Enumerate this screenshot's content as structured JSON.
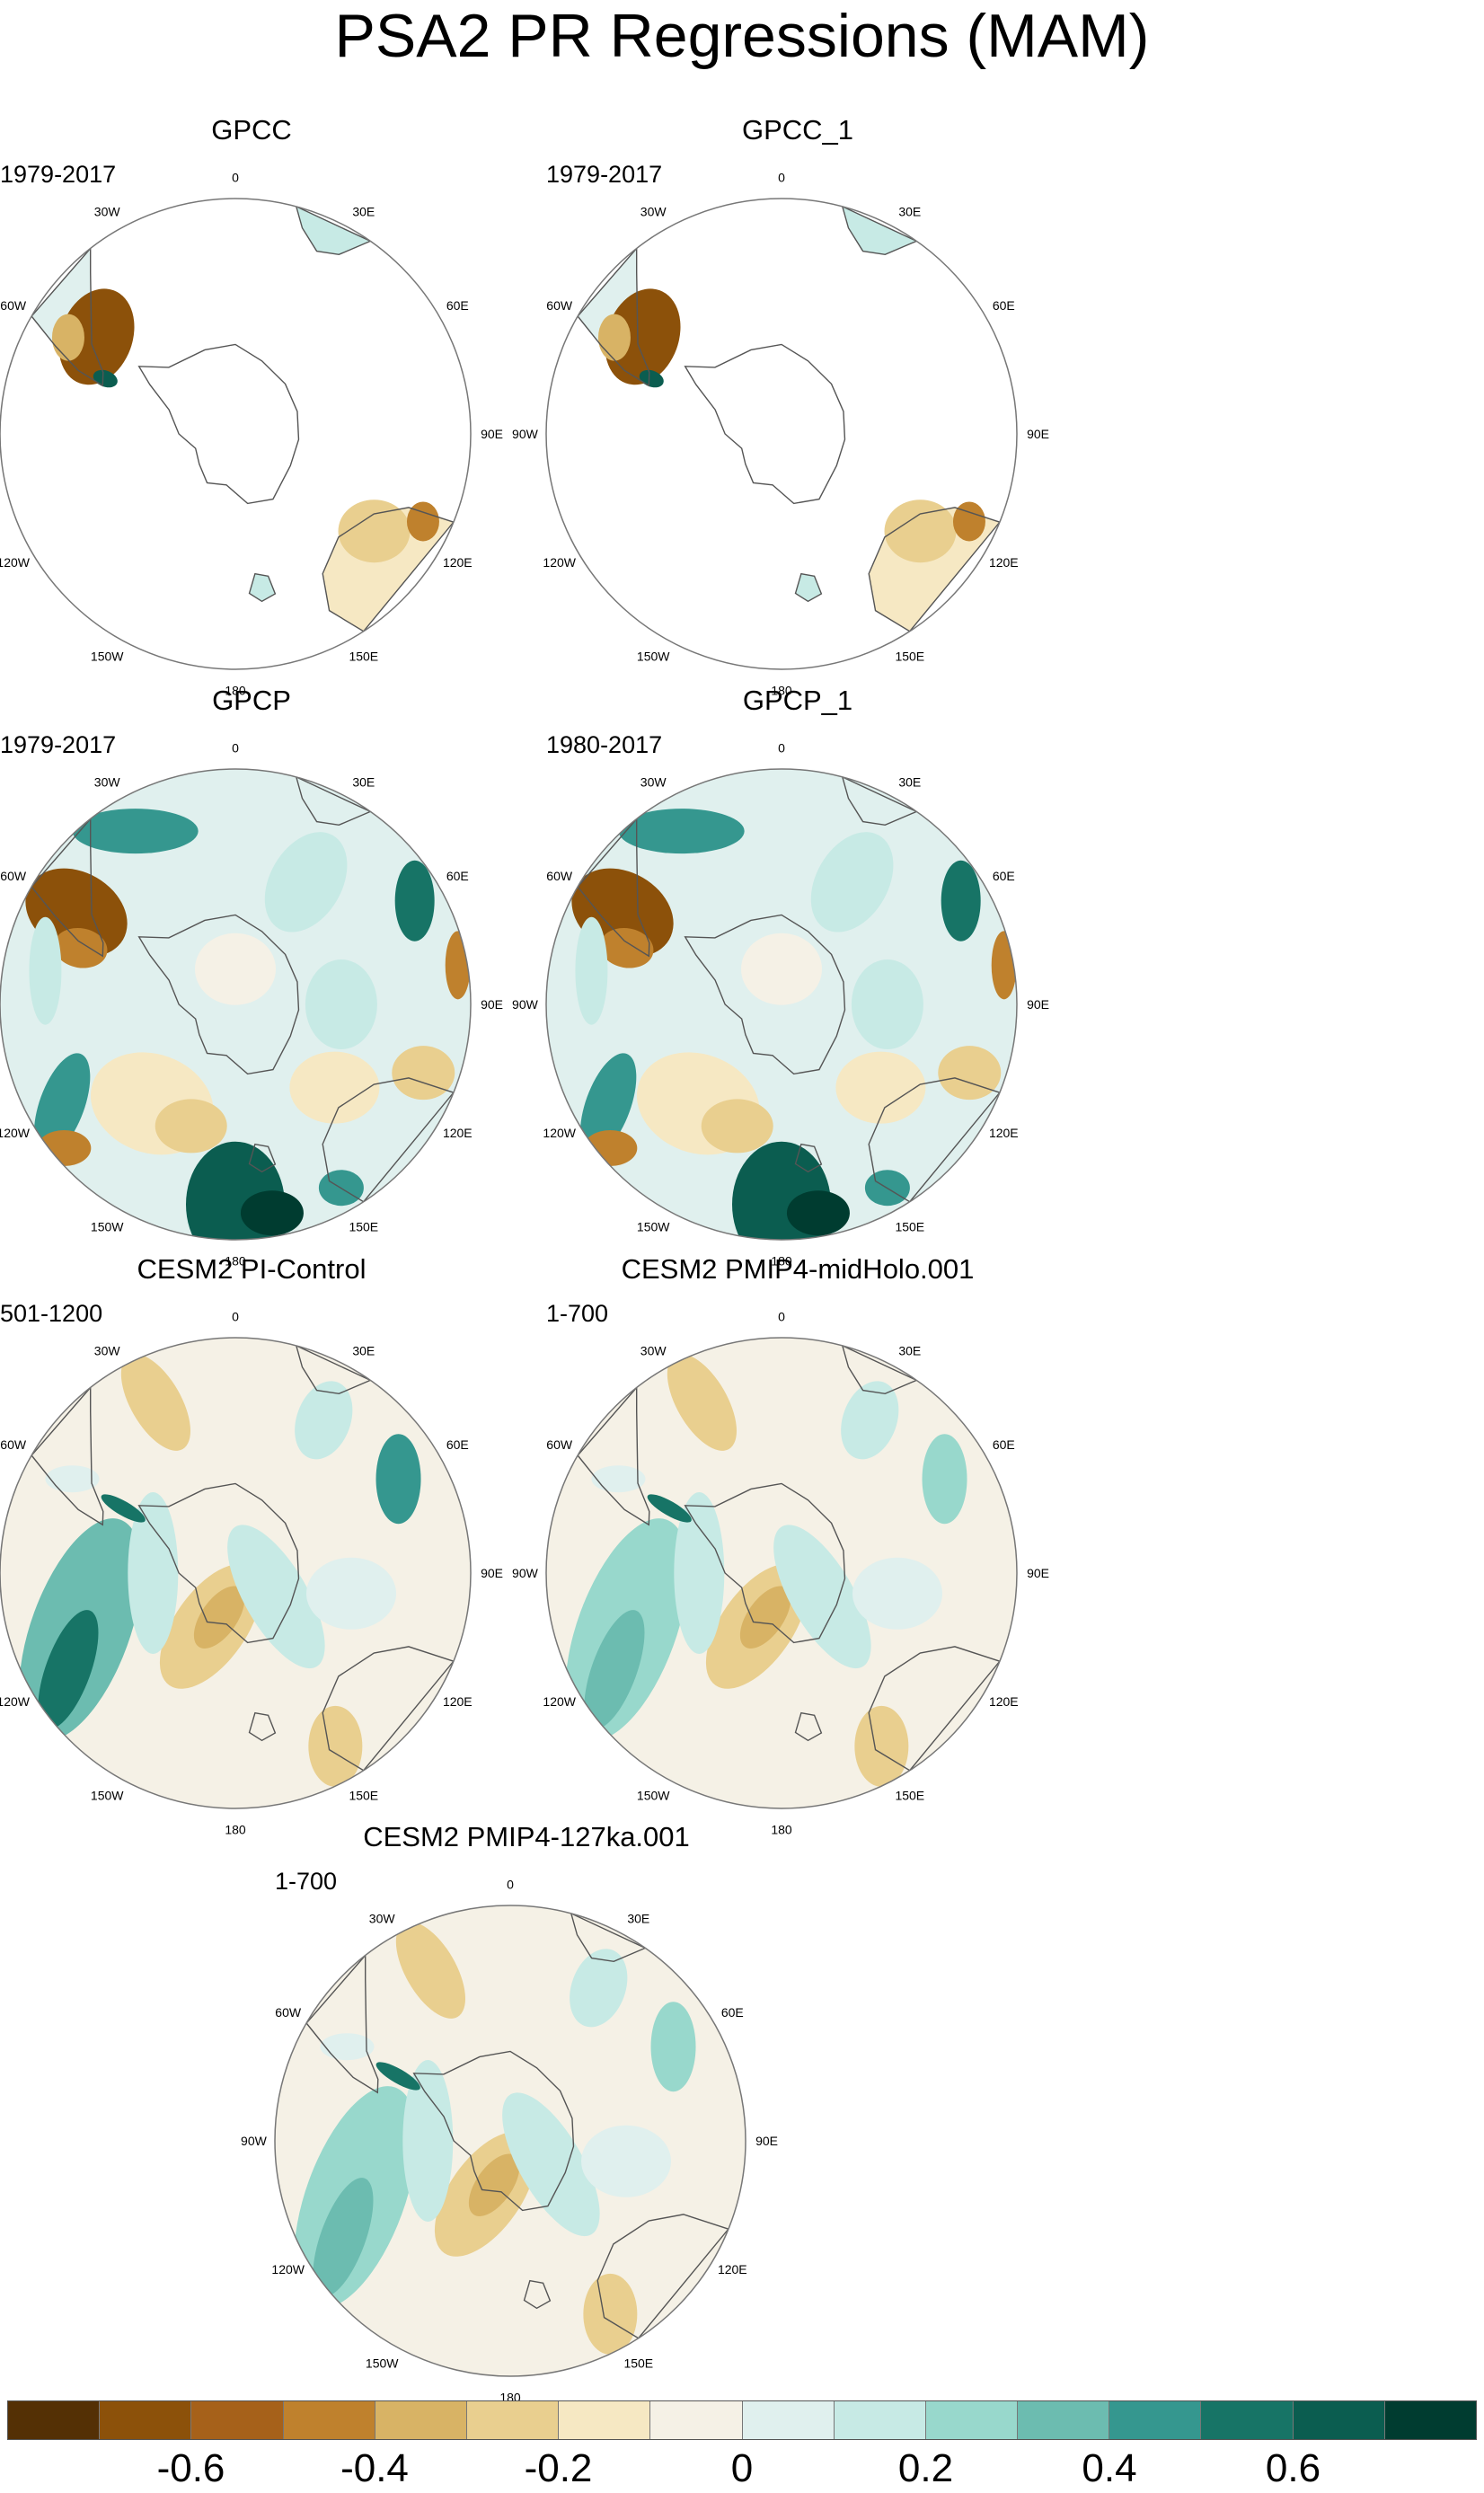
{
  "title": "PSA2 PR Regressions (MAM)",
  "lon_labels": [
    "0",
    "30E",
    "60E",
    "90E",
    "120E",
    "150E",
    "180",
    "150W",
    "120W",
    "90W",
    "60W",
    "30W"
  ],
  "panels": [
    {
      "title": "GPCC",
      "period": "1979-2017",
      "pattern": "land_only"
    },
    {
      "title": "GPCC_1",
      "period": "1979-2017",
      "pattern": "land_only"
    },
    {
      "title": "GPCP",
      "period": "1979-2017",
      "pattern": "full_field"
    },
    {
      "title": "GPCP_1",
      "period": "1980-2017",
      "pattern": "full_field"
    },
    {
      "title": "CESM2 PI-Control",
      "period": "501-1200",
      "pattern": "model"
    },
    {
      "title": "CESM2 PMIP4-midHolo.001",
      "period": "1-700",
      "pattern": "model"
    },
    {
      "title": "CESM2 PMIP4-127ka.001",
      "period": "1-700",
      "pattern": "model"
    }
  ],
  "colorbar": {
    "colors": [
      "#543005",
      "#8c510a",
      "#a6611a",
      "#bf812d",
      "#d8b365",
      "#e9cf8f",
      "#f6e8c3",
      "#f5f1e6",
      "#e0f0ee",
      "#c7eae5",
      "#98d8cc",
      "#6cbcb0",
      "#35978f",
      "#177466",
      "#0b5d50",
      "#003c30"
    ],
    "tick_labels": [
      "-0.6",
      "-0.4",
      "-0.2",
      "0",
      "0.2",
      "0.4",
      "0.6"
    ],
    "tick_values": [
      -0.6,
      -0.4,
      -0.2,
      0,
      0.2,
      0.4,
      0.6
    ],
    "min": -0.8,
    "max": 0.8
  }
}
